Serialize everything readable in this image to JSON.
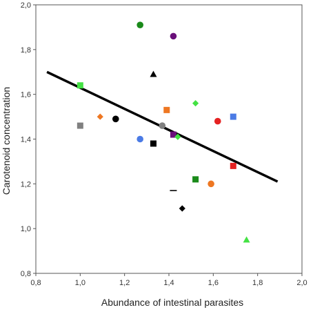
{
  "chart_data": {
    "type": "scatter",
    "title": "",
    "xlabel": "Abundance of intestinal parasites",
    "ylabel": "Carotenoid concentration",
    "xlim": [
      0.8,
      2.0
    ],
    "ylim": [
      0.8,
      2.0
    ],
    "xticks": [
      "0,8",
      "1,0",
      "1,2",
      "1,4",
      "1,6",
      "1,8",
      "2,0"
    ],
    "yticks": [
      "0,8",
      "1,0",
      "1,2",
      "1,4",
      "1,6",
      "1,8",
      "2,0"
    ],
    "grid": false,
    "legend": "none",
    "regression_line": {
      "x": [
        0.85,
        1.89
      ],
      "y": [
        1.7,
        1.21
      ],
      "color": "#000000"
    },
    "points": [
      {
        "x": 1.0,
        "y": 1.64,
        "shape": "square",
        "color": "#44e244"
      },
      {
        "x": 1.0,
        "y": 1.46,
        "shape": "square",
        "color": "#808080"
      },
      {
        "x": 1.09,
        "y": 1.5,
        "shape": "diamond",
        "color": "#ee7722"
      },
      {
        "x": 1.16,
        "y": 1.49,
        "shape": "circle",
        "color": "#000000"
      },
      {
        "x": 1.27,
        "y": 1.91,
        "shape": "circle",
        "color": "#1a8a1a"
      },
      {
        "x": 1.27,
        "y": 1.4,
        "shape": "circle",
        "color": "#4b7be5"
      },
      {
        "x": 1.33,
        "y": 1.69,
        "shape": "triangle",
        "color": "#000000"
      },
      {
        "x": 1.33,
        "y": 1.38,
        "shape": "square",
        "color": "#000000"
      },
      {
        "x": 1.37,
        "y": 1.46,
        "shape": "circle",
        "color": "#808080"
      },
      {
        "x": 1.39,
        "y": 1.53,
        "shape": "square",
        "color": "#ee7722"
      },
      {
        "x": 1.42,
        "y": 1.86,
        "shape": "circle",
        "color": "#6a0f7a"
      },
      {
        "x": 1.42,
        "y": 1.42,
        "shape": "square",
        "color": "#6a0f7a"
      },
      {
        "x": 1.42,
        "y": 1.17,
        "shape": "dash",
        "color": "#000000"
      },
      {
        "x": 1.44,
        "y": 1.41,
        "shape": "diamond",
        "color": "#44e244"
      },
      {
        "x": 1.46,
        "y": 1.09,
        "shape": "diamond",
        "color": "#000000"
      },
      {
        "x": 1.52,
        "y": 1.56,
        "shape": "diamond",
        "color": "#44e244"
      },
      {
        "x": 1.52,
        "y": 1.22,
        "shape": "square",
        "color": "#1a8a1a"
      },
      {
        "x": 1.59,
        "y": 1.2,
        "shape": "circle",
        "color": "#ee7722"
      },
      {
        "x": 1.62,
        "y": 1.48,
        "shape": "circle",
        "color": "#e52222"
      },
      {
        "x": 1.69,
        "y": 1.5,
        "shape": "square",
        "color": "#4b7be5"
      },
      {
        "x": 1.69,
        "y": 1.28,
        "shape": "square",
        "color": "#e52222"
      },
      {
        "x": 1.75,
        "y": 0.95,
        "shape": "triangle",
        "color": "#44e244"
      }
    ]
  }
}
